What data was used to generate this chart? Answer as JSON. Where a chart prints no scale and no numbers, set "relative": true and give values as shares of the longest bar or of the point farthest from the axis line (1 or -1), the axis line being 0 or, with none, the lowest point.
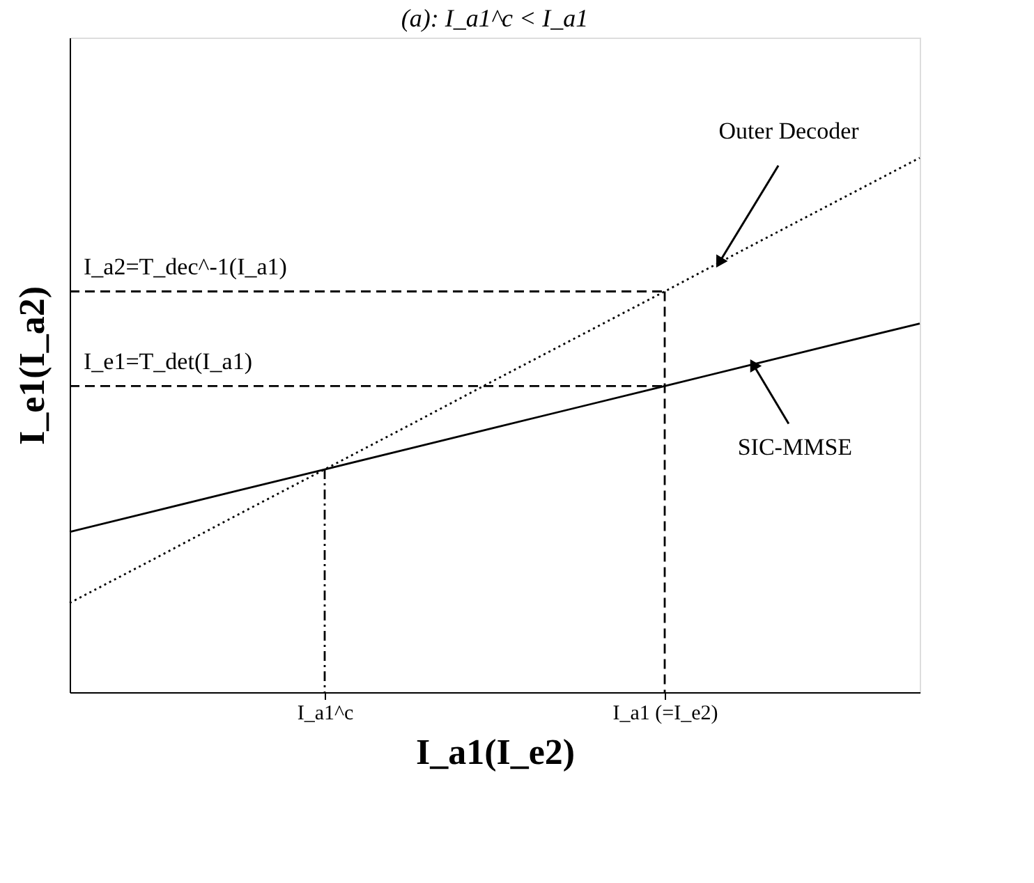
{
  "chart_data": {
    "type": "line",
    "title": "(a): I_a1^c < I_a1",
    "xlabel": "I_a1(I_e2)",
    "ylabel": "I_e1(I_a2)",
    "relative": true,
    "tick_labels": "x",
    "grid": false,
    "marker": "none",
    "categories": [
      null,
      null,
      null,
      "I_a1^c",
      null,
      null,
      null,
      "I_a1 (=I_e2)",
      null,
      null,
      null
    ],
    "series": [
      {
        "name": "Outer Decoder",
        "color": "#000000",
        "line_style": "dotted",
        "values": [
          0.167,
          0.25,
          0.334,
          0.417,
          0.5,
          0.584,
          0.667,
          0.75,
          0.834,
          0.917,
          1.0
        ]
      },
      {
        "name": "SIC-MMSE",
        "color": "#000000",
        "line_style": "solid",
        "values": [
          0.3,
          0.339,
          0.378,
          0.417,
          0.456,
          0.495,
          0.534,
          0.573,
          0.612,
          0.651,
          0.69
        ]
      },
      {
        "color": "#000000",
        "line_style": "dashed",
        "values": [
          0.75,
          0.75,
          0.75,
          0.75,
          0.75,
          0.75,
          0.75,
          0.75,
          null,
          null,
          null
        ]
      },
      {
        "color": "#000000",
        "line_style": "dashed",
        "values": [
          0.573,
          0.573,
          0.573,
          0.573,
          0.573,
          0.573,
          0.573,
          0.573,
          null,
          null,
          null
        ]
      },
      {
        "color": "#000000",
        "line_style": "dashed",
        "x": [
          "I_a1 (=I_e2)",
          "I_a1 (=I_e2)"
        ],
        "values": [
          0.75,
          0
        ]
      },
      {
        "color": "#000000",
        "line_style": "dashdot",
        "x": [
          "I_a1^c",
          "I_a1^c"
        ],
        "values": [
          0.417,
          0
        ]
      }
    ],
    "annotations": [
      {
        "text": "I_a2=T_dec^-1(I_a1)",
        "y": 0.75
      },
      {
        "text": "I_e1=T_det(I_a1)",
        "y": 0.573
      }
    ]
  }
}
